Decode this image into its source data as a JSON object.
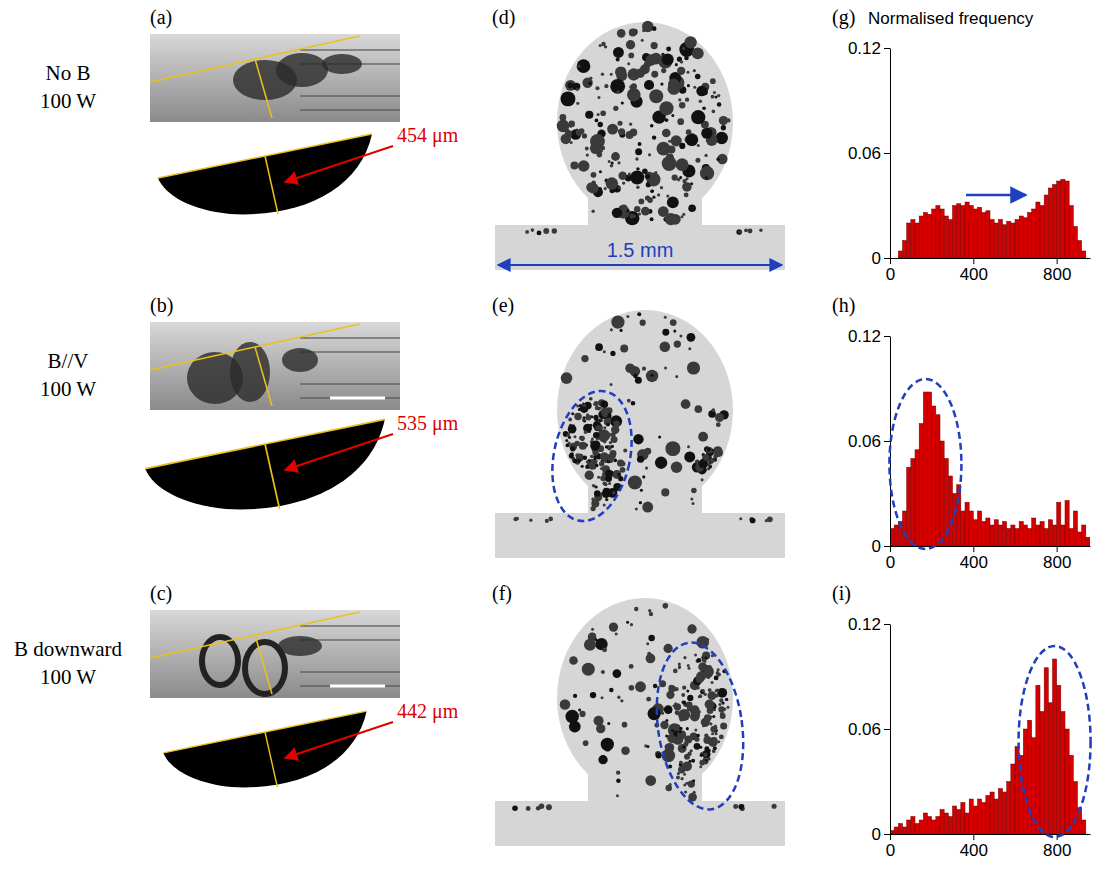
{
  "panels": [
    {
      "photo_label": "(a)",
      "condition": "No B",
      "power": "100 W",
      "depth": "454 μm",
      "ct_label": "(d)"
    },
    {
      "photo_label": "(b)",
      "condition": "B//V",
      "power": "100 W",
      "depth": "535 μm",
      "ct_label": "(e)"
    },
    {
      "photo_label": "(c)",
      "condition": "B downward",
      "power": "100 W",
      "depth": "442 μm",
      "ct_label": "(f)"
    }
  ],
  "scale_bar": "1.5 mm",
  "chart_data": [
    {
      "type": "histogram",
      "title": "(g)",
      "ylabel": "Normalised frequency",
      "color": "#d40000",
      "bins": [
        0,
        20,
        40,
        60,
        80,
        100,
        120,
        140,
        160,
        180,
        200,
        220,
        240,
        260,
        280,
        300,
        320,
        340,
        360,
        380,
        400,
        420,
        440,
        460,
        480,
        500,
        520,
        540,
        560,
        580,
        600,
        620,
        640,
        660,
        680,
        700,
        720,
        740,
        760,
        780,
        800,
        820,
        840,
        860,
        880,
        900,
        920,
        940,
        960
      ],
      "counts": [
        0,
        0,
        0.004,
        0.01,
        0.02,
        0.022,
        0.02,
        0.024,
        0.026,
        0.025,
        0.028,
        0.03,
        0.028,
        0.024,
        0.022,
        0.03,
        0.031,
        0.03,
        0.032,
        0.03,
        0.028,
        0.029,
        0.026,
        0.027,
        0.022,
        0.02,
        0.022,
        0.019,
        0.021,
        0.02,
        0.022,
        0.024,
        0.023,
        0.026,
        0.028,
        0.032,
        0.03,
        0.036,
        0.04,
        0.042,
        0.044,
        0.045,
        0.044,
        0.03,
        0.018,
        0.01,
        0.004,
        0
      ],
      "xlim": [
        0,
        960
      ],
      "ylim": [
        0,
        0.12
      ],
      "xticks": [
        0,
        400,
        800
      ],
      "yticks": [
        0,
        0.06,
        0.12
      ]
    },
    {
      "type": "histogram",
      "title": "(h)",
      "color": "#d40000",
      "bins": [
        0,
        20,
        40,
        60,
        80,
        100,
        120,
        140,
        160,
        180,
        200,
        220,
        240,
        260,
        280,
        300,
        320,
        340,
        360,
        380,
        400,
        420,
        440,
        460,
        480,
        500,
        520,
        540,
        560,
        580,
        600,
        620,
        640,
        660,
        680,
        700,
        720,
        740,
        760,
        780,
        800,
        820,
        840,
        860,
        880,
        900,
        920,
        940,
        960
      ],
      "counts": [
        0.01,
        0.012,
        0.014,
        0.02,
        0.045,
        0.05,
        0.055,
        0.07,
        0.088,
        0.088,
        0.08,
        0.075,
        0.06,
        0.05,
        0.04,
        0.03,
        0.035,
        0.02,
        0.025,
        0.02,
        0.015,
        0.02,
        0.014,
        0.016,
        0.012,
        0.015,
        0.012,
        0.014,
        0.01,
        0.012,
        0.01,
        0.014,
        0.012,
        0.01,
        0.016,
        0.012,
        0.014,
        0.01,
        0.015,
        0.012,
        0.025,
        0.012,
        0.026,
        0.01,
        0.02,
        0.008,
        0.012,
        0.005
      ],
      "xlim": [
        0,
        960
      ],
      "ylim": [
        0,
        0.12
      ],
      "xticks": [
        0,
        400,
        800
      ],
      "yticks": [
        0,
        0.06,
        0.12
      ]
    },
    {
      "type": "histogram",
      "title": "(i)",
      "color": "#d40000",
      "bins": [
        0,
        20,
        40,
        60,
        80,
        100,
        120,
        140,
        160,
        180,
        200,
        220,
        240,
        260,
        280,
        300,
        320,
        340,
        360,
        380,
        400,
        420,
        440,
        460,
        480,
        500,
        520,
        540,
        560,
        580,
        600,
        620,
        640,
        660,
        680,
        700,
        720,
        740,
        760,
        780,
        800,
        820,
        840,
        860,
        880,
        900,
        920,
        940,
        960
      ],
      "counts": [
        0.002,
        0.004,
        0.006,
        0.004,
        0.008,
        0.01,
        0.006,
        0.008,
        0.012,
        0.01,
        0.008,
        0.01,
        0.014,
        0.012,
        0.01,
        0.016,
        0.014,
        0.018,
        0.012,
        0.02,
        0.016,
        0.02,
        0.018,
        0.022,
        0.024,
        0.02,
        0.026,
        0.024,
        0.03,
        0.04,
        0.05,
        0.045,
        0.06,
        0.065,
        0.055,
        0.085,
        0.07,
        0.095,
        0.075,
        0.1,
        0.085,
        0.07,
        0.06,
        0.045,
        0.03,
        0.015,
        0.008,
        0
      ],
      "xlim": [
        0,
        960
      ],
      "ylim": [
        0,
        0.12
      ],
      "xticks": [
        0,
        400,
        800
      ],
      "yticks": [
        0,
        0.06,
        0.12
      ]
    }
  ]
}
